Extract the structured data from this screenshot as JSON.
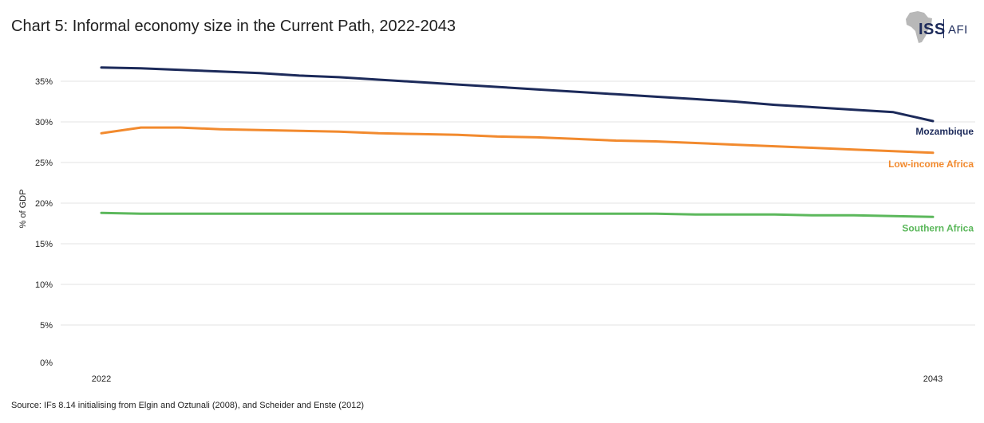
{
  "title": "Chart 5: Informal economy size in the Current Path, 2022-2043",
  "source": "Source: IFs 8.14 initialising from Elgin and Oztunali (2008), and Scheider and Enste (2012)",
  "logo": {
    "primary": "ISS",
    "secondary": "AFI",
    "icon": "africa-map-icon"
  },
  "chart_data": {
    "type": "line",
    "title": "Chart 5: Informal economy size in the Current Path, 2022-2043",
    "xlabel": "",
    "ylabel": "% of GDP",
    "x": [
      2022,
      2023,
      2024,
      2025,
      2026,
      2027,
      2028,
      2029,
      2030,
      2031,
      2032,
      2033,
      2034,
      2035,
      2036,
      2037,
      2038,
      2039,
      2040,
      2041,
      2042,
      2043
    ],
    "xtick_labels": [
      "2022",
      "2043"
    ],
    "ylim": [
      0,
      35
    ],
    "yticks": [
      0,
      5,
      10,
      15,
      20,
      25,
      30,
      35
    ],
    "ytick_labels": [
      "0%",
      "5%",
      "10%",
      "15%",
      "20%",
      "25%",
      "30%",
      "35%"
    ],
    "grid": true,
    "legend": "direct labels at right end of lines",
    "series": [
      {
        "name": "Mozambique",
        "color": "#1c2a5a",
        "values": [
          36.7,
          36.6,
          36.4,
          36.2,
          36.0,
          35.7,
          35.5,
          35.2,
          34.9,
          34.6,
          34.3,
          34.0,
          33.7,
          33.4,
          33.1,
          32.8,
          32.5,
          32.1,
          31.8,
          31.5,
          31.2,
          30.1
        ]
      },
      {
        "name": "Low-income Africa",
        "color": "#f28a2e",
        "values": [
          28.6,
          29.3,
          29.3,
          29.1,
          29.0,
          28.9,
          28.8,
          28.6,
          28.5,
          28.4,
          28.2,
          28.1,
          27.9,
          27.7,
          27.6,
          27.4,
          27.2,
          27.0,
          26.8,
          26.6,
          26.4,
          26.2
        ]
      },
      {
        "name": "Southern Africa",
        "color": "#5cb85c",
        "values": [
          18.8,
          18.7,
          18.7,
          18.7,
          18.7,
          18.7,
          18.7,
          18.7,
          18.7,
          18.7,
          18.7,
          18.7,
          18.7,
          18.7,
          18.7,
          18.6,
          18.6,
          18.6,
          18.5,
          18.5,
          18.4,
          18.3
        ]
      }
    ]
  }
}
